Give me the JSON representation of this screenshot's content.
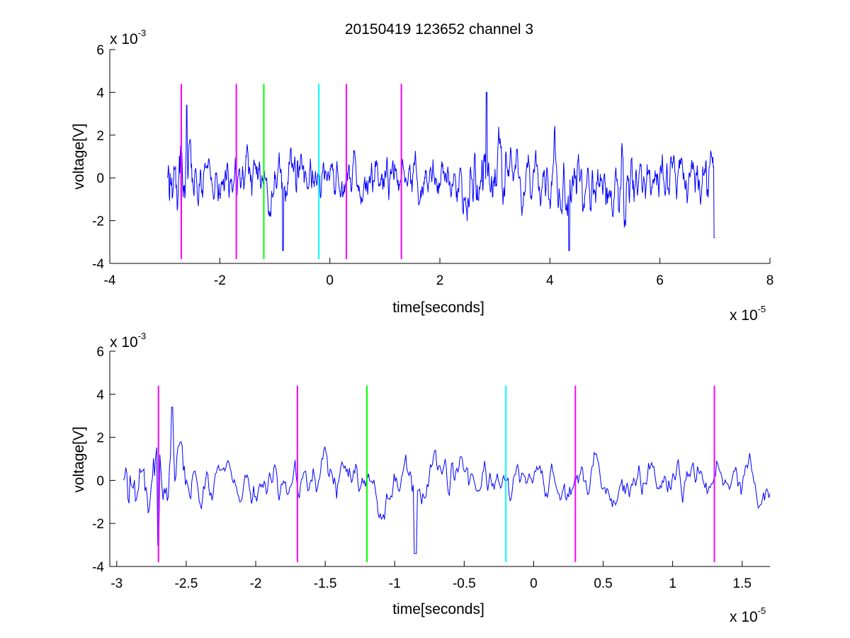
{
  "figure": {
    "title": "20150419 123652 channel 3"
  },
  "chart_data": [
    {
      "type": "line",
      "xlabel": "time[seconds]",
      "ylabel": "voltage[V]",
      "x_multiplier": "x 10",
      "x_exponent": "-5",
      "y_multiplier": "x 10",
      "y_exponent": "-3",
      "xlim": [
        -4,
        8
      ],
      "ylim": [
        -4,
        6
      ],
      "xticks": [
        -4,
        -2,
        0,
        2,
        4,
        6,
        8
      ],
      "xtick_labels": [
        "-4",
        "-2",
        "0",
        "2",
        "4",
        "6",
        "8"
      ],
      "yticks": [
        -4,
        -2,
        0,
        2,
        4,
        6
      ],
      "ytick_labels": [
        "-4",
        "-2",
        "0",
        "2",
        "4",
        "6"
      ],
      "grid": false,
      "signal": {
        "color": "#0000ff",
        "x_start": -2.95,
        "x_end": 7.0,
        "y_range": [
          -3.4,
          4.0
        ]
      },
      "markers": [
        {
          "x": -2.7,
          "color": "#ff00ff",
          "y_range": [
            -3.8,
            4.4
          ]
        },
        {
          "x": -1.7,
          "color": "#ff00ff",
          "y_range": [
            -3.8,
            4.4
          ]
        },
        {
          "x": -1.2,
          "color": "#00ff00",
          "y_range": [
            -3.8,
            4.4
          ]
        },
        {
          "x": -0.2,
          "color": "#00ffff",
          "y_range": [
            -3.8,
            4.4
          ]
        },
        {
          "x": 0.3,
          "color": "#ff00ff",
          "y_range": [
            -3.8,
            4.4
          ]
        },
        {
          "x": 1.3,
          "color": "#ff00ff",
          "y_range": [
            -3.8,
            4.4
          ]
        }
      ]
    },
    {
      "type": "line",
      "xlabel": "time[seconds]",
      "ylabel": "voltage[V]",
      "x_multiplier": "x 10",
      "x_exponent": "-5",
      "y_multiplier": "x 10",
      "y_exponent": "-3",
      "xlim": [
        -3.05,
        1.7
      ],
      "ylim": [
        -4,
        6
      ],
      "xticks": [
        -3,
        -2.5,
        -2,
        -1.5,
        -1,
        -0.5,
        0,
        0.5,
        1,
        1.5
      ],
      "xtick_labels": [
        "-3",
        "-2.5",
        "-2",
        "-1.5",
        "-1",
        "-0.5",
        "0",
        "0.5",
        "1",
        "1.5"
      ],
      "yticks": [
        -4,
        -2,
        0,
        2,
        4,
        6
      ],
      "ytick_labels": [
        "-4",
        "-2",
        "0",
        "2",
        "4",
        "6"
      ],
      "grid": false,
      "signal": {
        "color": "#0000ff",
        "x_start": -2.95,
        "x_end": 1.7,
        "y_range": [
          -3.4,
          3.4
        ]
      },
      "markers": [
        {
          "x": -2.7,
          "color": "#ff00ff",
          "y_range": [
            -3.8,
            4.4
          ]
        },
        {
          "x": -1.7,
          "color": "#ff00ff",
          "y_range": [
            -3.8,
            4.4
          ]
        },
        {
          "x": -1.2,
          "color": "#00ff00",
          "y_range": [
            -3.8,
            4.4
          ]
        },
        {
          "x": -0.2,
          "color": "#00ffff",
          "y_range": [
            -3.8,
            4.4
          ]
        },
        {
          "x": 0.3,
          "color": "#ff00ff",
          "y_range": [
            -3.8,
            4.4
          ]
        },
        {
          "x": 1.3,
          "color": "#ff00ff",
          "y_range": [
            -3.8,
            4.4
          ]
        }
      ]
    }
  ]
}
